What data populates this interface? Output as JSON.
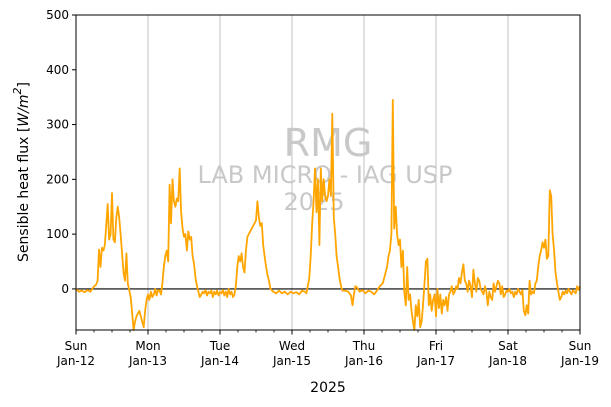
{
  "chart_data": {
    "type": "line",
    "ylabel": "Sensible heat flux [W/m²]",
    "ylabel_parts": [
      "Sensible heat flux [",
      "W/m",
      "2",
      "]"
    ],
    "xlabel": "2025",
    "ylim": [
      -75,
      500
    ],
    "yticks": [
      0,
      100,
      200,
      300,
      400,
      500
    ],
    "ytick_labels": [
      "0",
      "100",
      "200",
      "300",
      "400",
      "500"
    ],
    "xlim": [
      0,
      7
    ],
    "xticks": [
      {
        "x": 0,
        "day": "Sun",
        "date": "Jan-12"
      },
      {
        "x": 1,
        "day": "Mon",
        "date": "Jan-13"
      },
      {
        "x": 2,
        "day": "Tue",
        "date": "Jan-14"
      },
      {
        "x": 3,
        "day": "Wed",
        "date": "Jan-15"
      },
      {
        "x": 4,
        "day": "Thu",
        "date": "Jan-16"
      },
      {
        "x": 5,
        "day": "Fri",
        "date": "Jan-17"
      },
      {
        "x": 6,
        "day": "Sat",
        "date": "Jan-18"
      },
      {
        "x": 7,
        "day": "Sun",
        "date": "Jan-19"
      }
    ],
    "grid": "x-major",
    "reference_line_y": 0,
    "series": [
      {
        "color": "#ffa500",
        "points": [
          [
            0.0,
            0
          ],
          [
            0.04,
            -5
          ],
          [
            0.08,
            -3
          ],
          [
            0.12,
            -6
          ],
          [
            0.16,
            -2
          ],
          [
            0.2,
            -5
          ],
          [
            0.24,
            3
          ],
          [
            0.28,
            8
          ],
          [
            0.3,
            15
          ],
          [
            0.32,
            72
          ],
          [
            0.34,
            40
          ],
          [
            0.36,
            75
          ],
          [
            0.38,
            70
          ],
          [
            0.4,
            80
          ],
          [
            0.42,
            115
          ],
          [
            0.44,
            155
          ],
          [
            0.46,
            90
          ],
          [
            0.48,
            100
          ],
          [
            0.5,
            175
          ],
          [
            0.52,
            90
          ],
          [
            0.54,
            85
          ],
          [
            0.56,
            130
          ],
          [
            0.58,
            150
          ],
          [
            0.6,
            130
          ],
          [
            0.62,
            100
          ],
          [
            0.64,
            65
          ],
          [
            0.66,
            30
          ],
          [
            0.68,
            15
          ],
          [
            0.7,
            65
          ],
          [
            0.72,
            10
          ],
          [
            0.76,
            -15
          ],
          [
            0.78,
            -45
          ],
          [
            0.8,
            -75
          ],
          [
            0.82,
            -60
          ],
          [
            0.84,
            -50
          ],
          [
            0.86,
            -45
          ],
          [
            0.88,
            -40
          ],
          [
            0.9,
            -50
          ],
          [
            0.92,
            -60
          ],
          [
            0.94,
            -70
          ],
          [
            0.96,
            -40
          ],
          [
            0.98,
            -20
          ],
          [
            1.0,
            -10
          ],
          [
            1.02,
            -20
          ],
          [
            1.04,
            -5
          ],
          [
            1.06,
            -15
          ],
          [
            1.08,
            -10
          ],
          [
            1.1,
            0
          ],
          [
            1.12,
            -12
          ],
          [
            1.14,
            -2
          ],
          [
            1.16,
            -3
          ],
          [
            1.18,
            -10
          ],
          [
            1.2,
            10
          ],
          [
            1.22,
            40
          ],
          [
            1.24,
            60
          ],
          [
            1.26,
            70
          ],
          [
            1.28,
            50
          ],
          [
            1.3,
            190
          ],
          [
            1.32,
            120
          ],
          [
            1.34,
            200
          ],
          [
            1.36,
            160
          ],
          [
            1.38,
            150
          ],
          [
            1.4,
            165
          ],
          [
            1.42,
            160
          ],
          [
            1.44,
            220
          ],
          [
            1.46,
            140
          ],
          [
            1.48,
            110
          ],
          [
            1.5,
            95
          ],
          [
            1.52,
            100
          ],
          [
            1.54,
            70
          ],
          [
            1.56,
            105
          ],
          [
            1.58,
            90
          ],
          [
            1.6,
            95
          ],
          [
            1.62,
            60
          ],
          [
            1.64,
            45
          ],
          [
            1.66,
            20
          ],
          [
            1.68,
            5
          ],
          [
            1.7,
            -5
          ],
          [
            1.72,
            -15
          ],
          [
            1.74,
            -10
          ],
          [
            1.76,
            -5
          ],
          [
            1.78,
            -8
          ],
          [
            1.8,
            -2
          ],
          [
            1.82,
            -12
          ],
          [
            1.84,
            -5
          ],
          [
            1.86,
            -8
          ],
          [
            1.88,
            -3
          ],
          [
            1.9,
            -15
          ],
          [
            1.92,
            -5
          ],
          [
            1.94,
            -10
          ],
          [
            1.96,
            -3
          ],
          [
            1.98,
            -12
          ],
          [
            2.0,
            -6
          ],
          [
            2.02,
            -8
          ],
          [
            2.04,
            -2
          ],
          [
            2.06,
            -12
          ],
          [
            2.08,
            -5
          ],
          [
            2.1,
            -15
          ],
          [
            2.12,
            0
          ],
          [
            2.14,
            -10
          ],
          [
            2.16,
            -5
          ],
          [
            2.18,
            -15
          ],
          [
            2.2,
            -10
          ],
          [
            2.22,
            5
          ],
          [
            2.24,
            40
          ],
          [
            2.26,
            60
          ],
          [
            2.28,
            50
          ],
          [
            2.3,
            65
          ],
          [
            2.32,
            40
          ],
          [
            2.34,
            30
          ],
          [
            2.36,
            70
          ],
          [
            2.38,
            95
          ],
          [
            2.4,
            100
          ],
          [
            2.42,
            105
          ],
          [
            2.44,
            110
          ],
          [
            2.46,
            115
          ],
          [
            2.48,
            120
          ],
          [
            2.5,
            125
          ],
          [
            2.52,
            160
          ],
          [
            2.54,
            130
          ],
          [
            2.56,
            115
          ],
          [
            2.58,
            120
          ],
          [
            2.6,
            80
          ],
          [
            2.62,
            60
          ],
          [
            2.64,
            40
          ],
          [
            2.66,
            25
          ],
          [
            2.68,
            15
          ],
          [
            2.7,
            0
          ],
          [
            2.74,
            -5
          ],
          [
            2.78,
            -8
          ],
          [
            2.82,
            -3
          ],
          [
            2.86,
            -8
          ],
          [
            2.9,
            -5
          ],
          [
            2.94,
            -10
          ],
          [
            2.98,
            -5
          ],
          [
            3.02,
            -8
          ],
          [
            3.06,
            -6
          ],
          [
            3.1,
            -10
          ],
          [
            3.14,
            -3
          ],
          [
            3.18,
            -5
          ],
          [
            3.2,
            -8
          ],
          [
            3.22,
            5
          ],
          [
            3.24,
            20
          ],
          [
            3.26,
            60
          ],
          [
            3.28,
            120
          ],
          [
            3.3,
            160
          ],
          [
            3.32,
            220
          ],
          [
            3.34,
            140
          ],
          [
            3.36,
            200
          ],
          [
            3.38,
            80
          ],
          [
            3.4,
            220
          ],
          [
            3.42,
            160
          ],
          [
            3.44,
            200
          ],
          [
            3.46,
            170
          ],
          [
            3.48,
            160
          ],
          [
            3.5,
            170
          ],
          [
            3.52,
            200
          ],
          [
            3.54,
            170
          ],
          [
            3.56,
            320
          ],
          [
            3.58,
            130
          ],
          [
            3.6,
            100
          ],
          [
            3.62,
            60
          ],
          [
            3.64,
            40
          ],
          [
            3.66,
            20
          ],
          [
            3.68,
            5
          ],
          [
            3.7,
            -3
          ],
          [
            3.74,
            -3
          ],
          [
            3.78,
            -5
          ],
          [
            3.82,
            -12
          ],
          [
            3.84,
            -30
          ],
          [
            3.86,
            -10
          ],
          [
            3.88,
            5
          ],
          [
            3.9,
            3
          ],
          [
            3.94,
            -5
          ],
          [
            3.98,
            -2
          ],
          [
            4.02,
            -8
          ],
          [
            4.06,
            -3
          ],
          [
            4.1,
            -5
          ],
          [
            4.14,
            -10
          ],
          [
            4.18,
            -3
          ],
          [
            4.22,
            5
          ],
          [
            4.26,
            10
          ],
          [
            4.28,
            20
          ],
          [
            4.3,
            30
          ],
          [
            4.32,
            40
          ],
          [
            4.34,
            60
          ],
          [
            4.36,
            70
          ],
          [
            4.38,
            100
          ],
          [
            4.4,
            345
          ],
          [
            4.42,
            110
          ],
          [
            4.44,
            150
          ],
          [
            4.46,
            100
          ],
          [
            4.48,
            80
          ],
          [
            4.5,
            90
          ],
          [
            4.52,
            40
          ],
          [
            4.54,
            70
          ],
          [
            4.56,
            -5
          ],
          [
            4.58,
            -30
          ],
          [
            4.6,
            40
          ],
          [
            4.62,
            -20
          ],
          [
            4.64,
            -10
          ],
          [
            4.66,
            -40
          ],
          [
            4.68,
            -60
          ],
          [
            4.7,
            -75
          ],
          [
            4.72,
            -30
          ],
          [
            4.74,
            -50
          ],
          [
            4.76,
            -20
          ],
          [
            4.78,
            -70
          ],
          [
            4.8,
            -60
          ],
          [
            4.82,
            -30
          ],
          [
            4.84,
            10
          ],
          [
            4.86,
            50
          ],
          [
            4.88,
            55
          ],
          [
            4.9,
            -30
          ],
          [
            4.92,
            -10
          ],
          [
            4.94,
            -40
          ],
          [
            4.96,
            -20
          ],
          [
            4.98,
            -10
          ],
          [
            5.0,
            -50
          ],
          [
            5.02,
            0
          ],
          [
            5.04,
            -35
          ],
          [
            5.06,
            -10
          ],
          [
            5.08,
            -45
          ],
          [
            5.1,
            -20
          ],
          [
            5.12,
            -30
          ],
          [
            5.14,
            -15
          ],
          [
            5.16,
            -40
          ],
          [
            5.18,
            -10
          ],
          [
            5.2,
            -5
          ],
          [
            5.22,
            5
          ],
          [
            5.24,
            -10
          ],
          [
            5.26,
            -5
          ],
          [
            5.28,
            5
          ],
          [
            5.3,
            0
          ],
          [
            5.32,
            20
          ],
          [
            5.34,
            10
          ],
          [
            5.36,
            30
          ],
          [
            5.38,
            45
          ],
          [
            5.4,
            15
          ],
          [
            5.42,
            10
          ],
          [
            5.44,
            -5
          ],
          [
            5.46,
            15
          ],
          [
            5.48,
            5
          ],
          [
            5.5,
            -15
          ],
          [
            5.52,
            35
          ],
          [
            5.54,
            10
          ],
          [
            5.56,
            -5
          ],
          [
            5.58,
            20
          ],
          [
            5.6,
            15
          ],
          [
            5.62,
            0
          ],
          [
            5.64,
            -5
          ],
          [
            5.66,
            -10
          ],
          [
            5.68,
            5
          ],
          [
            5.7,
            -5
          ],
          [
            5.72,
            -30
          ],
          [
            5.74,
            -5
          ],
          [
            5.76,
            -15
          ],
          [
            5.78,
            -20
          ],
          [
            5.8,
            10
          ],
          [
            5.82,
            -5
          ],
          [
            5.84,
            5
          ],
          [
            5.86,
            15
          ],
          [
            5.88,
            10
          ],
          [
            5.9,
            -10
          ],
          [
            5.92,
            5
          ],
          [
            5.94,
            -15
          ],
          [
            5.96,
            -10
          ],
          [
            5.98,
            -3
          ],
          [
            6.0,
            -5
          ],
          [
            6.02,
            0
          ],
          [
            6.04,
            -8
          ],
          [
            6.06,
            -5
          ],
          [
            6.08,
            -15
          ],
          [
            6.1,
            -5
          ],
          [
            6.12,
            -10
          ],
          [
            6.14,
            0
          ],
          [
            6.16,
            -5
          ],
          [
            6.18,
            -10
          ],
          [
            6.2,
            -2
          ],
          [
            6.22,
            -40
          ],
          [
            6.24,
            -48
          ],
          [
            6.26,
            -30
          ],
          [
            6.28,
            -45
          ],
          [
            6.3,
            15
          ],
          [
            6.32,
            -10
          ],
          [
            6.34,
            -5
          ],
          [
            6.36,
            -8
          ],
          [
            6.38,
            10
          ],
          [
            6.4,
            15
          ],
          [
            6.42,
            40
          ],
          [
            6.44,
            60
          ],
          [
            6.46,
            70
          ],
          [
            6.48,
            85
          ],
          [
            6.5,
            75
          ],
          [
            6.52,
            90
          ],
          [
            6.54,
            55
          ],
          [
            6.56,
            60
          ],
          [
            6.58,
            180
          ],
          [
            6.6,
            170
          ],
          [
            6.62,
            100
          ],
          [
            6.64,
            70
          ],
          [
            6.66,
            30
          ],
          [
            6.68,
            10
          ],
          [
            6.7,
            -5
          ],
          [
            6.72,
            -20
          ],
          [
            6.74,
            -15
          ],
          [
            6.76,
            -5
          ],
          [
            6.78,
            -10
          ],
          [
            6.8,
            -3
          ],
          [
            6.82,
            -8
          ],
          [
            6.84,
            0
          ],
          [
            6.86,
            -5
          ],
          [
            6.88,
            -10
          ],
          [
            6.9,
            -3
          ],
          [
            6.92,
            -5
          ],
          [
            6.94,
            -8
          ],
          [
            6.96,
            5
          ],
          [
            6.98,
            -2
          ],
          [
            7.0,
            5
          ]
        ]
      }
    ],
    "watermark": [
      "RMG",
      "LAB MICRO - IAG USP",
      "2025"
    ]
  }
}
